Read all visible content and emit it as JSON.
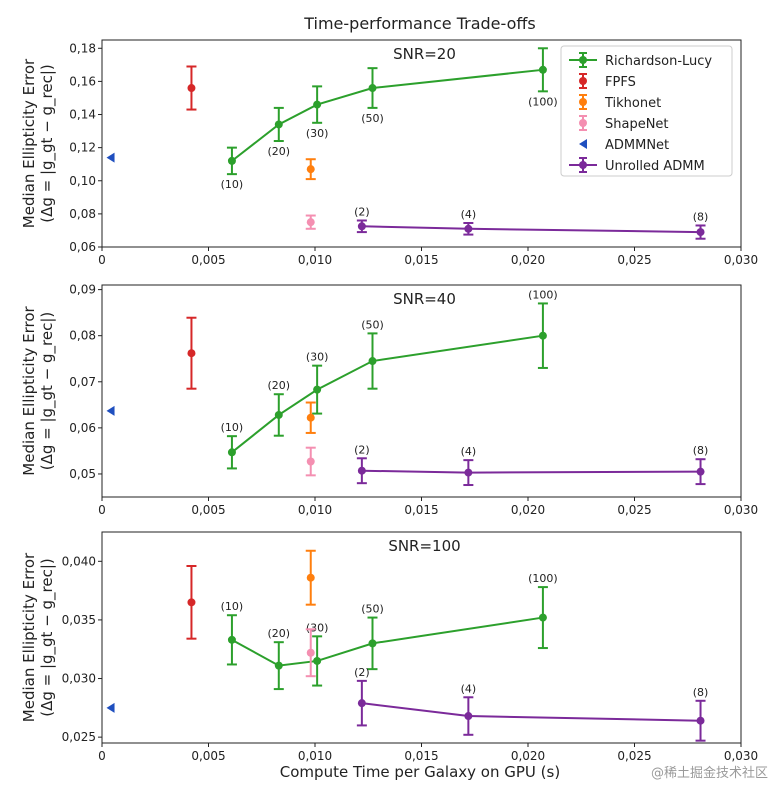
{
  "figure": {
    "title": "Time-performance Trade-offs",
    "xlabel": "Compute Time per Galaxy on GPU (s)",
    "ylabel_line1": "Median Ellipticity Error",
    "ylabel_line2": "(Δg = |g_gt − g_rec|)",
    "watermark": "@稀土掘金技术社区"
  },
  "colors": {
    "richardson_lucy": "#2ca02c",
    "fpfs": "#d62728",
    "tikhonet": "#ff7f0e",
    "shapenet": "#f48fb1",
    "admmnet": "#1f4fbf",
    "unrolled_admm": "#7b2a9a"
  },
  "chart_data": [
    {
      "type": "scatter",
      "panel_label": "SNR=20",
      "xlim": [
        0,
        0.03
      ],
      "ylim": [
        0.06,
        0.185
      ],
      "xticks": [
        0,
        0.005,
        0.01,
        0.015,
        0.02,
        0.025,
        0.03
      ],
      "xtick_labels": [
        "0",
        "0,005",
        "0,010",
        "0,015",
        "0,020",
        "0,025",
        "0,030"
      ],
      "yticks": [
        0.06,
        0.08,
        0.1,
        0.12,
        0.14,
        0.16,
        0.18
      ],
      "ytick_labels": [
        "0,06",
        "0,08",
        "0,10",
        "0,12",
        "0,14",
        "0,16",
        "0,18"
      ],
      "legend": "top-right",
      "legend_entries": [
        "Richardson-Lucy",
        "FPFS",
        "Tikhonet",
        "ShapeNet",
        "ADMMNet",
        "Unrolled ADMM"
      ],
      "series": [
        {
          "key": "richardson_lucy",
          "line": true,
          "points": [
            {
              "x": 0.0061,
              "y": 0.112,
              "err": 0.008,
              "label": "(10)",
              "label_pos": "below"
            },
            {
              "x": 0.0083,
              "y": 0.134,
              "err": 0.01,
              "label": "(20)",
              "label_pos": "below"
            },
            {
              "x": 0.0101,
              "y": 0.146,
              "err": 0.011,
              "label": "(30)",
              "label_pos": "below"
            },
            {
              "x": 0.0127,
              "y": 0.156,
              "err": 0.012,
              "label": "(50)",
              "label_pos": "below"
            },
            {
              "x": 0.0207,
              "y": 0.167,
              "err": 0.013,
              "label": "(100)",
              "label_pos": "below"
            }
          ]
        },
        {
          "key": "fpfs",
          "line": false,
          "points": [
            {
              "x": 0.0042,
              "y": 0.156,
              "err": 0.013
            }
          ]
        },
        {
          "key": "tikhonet",
          "line": false,
          "points": [
            {
              "x": 0.0098,
              "y": 0.107,
              "err": 0.006
            }
          ]
        },
        {
          "key": "shapenet",
          "line": false,
          "points": [
            {
              "x": 0.0098,
              "y": 0.075,
              "err": 0.004
            }
          ]
        },
        {
          "key": "admmnet",
          "line": false,
          "marker": "triangle",
          "points": [
            {
              "x": 0.0004,
              "y": 0.114
            }
          ]
        },
        {
          "key": "unrolled_admm",
          "line": true,
          "points": [
            {
              "x": 0.0122,
              "y": 0.0725,
              "err": 0.0035,
              "label": "(2)",
              "label_pos": "above"
            },
            {
              "x": 0.0172,
              "y": 0.071,
              "err": 0.0035,
              "label": "(4)",
              "label_pos": "above"
            },
            {
              "x": 0.0281,
              "y": 0.069,
              "err": 0.004,
              "label": "(8)",
              "label_pos": "above"
            }
          ]
        }
      ]
    },
    {
      "type": "scatter",
      "panel_label": "SNR=40",
      "xlim": [
        0,
        0.03
      ],
      "ylim": [
        0.045,
        0.091
      ],
      "xticks": [
        0,
        0.005,
        0.01,
        0.015,
        0.02,
        0.025,
        0.03
      ],
      "xtick_labels": [
        "0",
        "0,005",
        "0,010",
        "0,015",
        "0,020",
        "0,025",
        "0,030"
      ],
      "yticks": [
        0.05,
        0.06,
        0.07,
        0.08,
        0.09
      ],
      "ytick_labels": [
        "0,05",
        "0,06",
        "0,07",
        "0,08",
        "0,09"
      ],
      "series": [
        {
          "key": "richardson_lucy",
          "line": true,
          "points": [
            {
              "x": 0.0061,
              "y": 0.0547,
              "err": 0.0035,
              "label": "(10)",
              "label_pos": "above"
            },
            {
              "x": 0.0083,
              "y": 0.0628,
              "err": 0.0045,
              "label": "(20)",
              "label_pos": "above"
            },
            {
              "x": 0.0101,
              "y": 0.0683,
              "err": 0.0052,
              "label": "(30)",
              "label_pos": "above"
            },
            {
              "x": 0.0127,
              "y": 0.0745,
              "err": 0.006,
              "label": "(50)",
              "label_pos": "above"
            },
            {
              "x": 0.0207,
              "y": 0.08,
              "err": 0.007,
              "label": "(100)",
              "label_pos": "above"
            }
          ]
        },
        {
          "key": "fpfs",
          "line": false,
          "points": [
            {
              "x": 0.0042,
              "y": 0.0762,
              "err": 0.0077
            }
          ]
        },
        {
          "key": "tikhonet",
          "line": false,
          "points": [
            {
              "x": 0.0098,
              "y": 0.0622,
              "err": 0.0033
            }
          ]
        },
        {
          "key": "shapenet",
          "line": false,
          "points": [
            {
              "x": 0.0098,
              "y": 0.0527,
              "err": 0.003
            }
          ]
        },
        {
          "key": "admmnet",
          "line": false,
          "marker": "triangle",
          "points": [
            {
              "x": 0.0004,
              "y": 0.0637
            }
          ]
        },
        {
          "key": "unrolled_admm",
          "line": true,
          "points": [
            {
              "x": 0.0122,
              "y": 0.0507,
              "err": 0.0027,
              "label": "(2)",
              "label_pos": "above"
            },
            {
              "x": 0.0172,
              "y": 0.0503,
              "err": 0.0027,
              "label": "(4)",
              "label_pos": "above"
            },
            {
              "x": 0.0281,
              "y": 0.0505,
              "err": 0.0027,
              "label": "(8)",
              "label_pos": "above"
            }
          ]
        }
      ]
    },
    {
      "type": "scatter",
      "panel_label": "SNR=100",
      "xlim": [
        0,
        0.03
      ],
      "ylim": [
        0.0245,
        0.0425
      ],
      "xticks": [
        0,
        0.005,
        0.01,
        0.015,
        0.02,
        0.025,
        0.03
      ],
      "xtick_labels": [
        "0",
        "0,005",
        "0,010",
        "0,015",
        "0,020",
        "0,025",
        "0,030"
      ],
      "yticks": [
        0.025,
        0.03,
        0.035,
        0.04
      ],
      "ytick_labels": [
        "0,025",
        "0,030",
        "0,035",
        "0,040"
      ],
      "series": [
        {
          "key": "richardson_lucy",
          "line": true,
          "points": [
            {
              "x": 0.0061,
              "y": 0.0333,
              "err": 0.0021,
              "label": "(10)",
              "label_pos": "above"
            },
            {
              "x": 0.0083,
              "y": 0.0311,
              "err": 0.002,
              "label": "(20)",
              "label_pos": "above"
            },
            {
              "x": 0.0101,
              "y": 0.0315,
              "err": 0.0021,
              "label": "(30)",
              "label_pos": "above"
            },
            {
              "x": 0.0127,
              "y": 0.033,
              "err": 0.0022,
              "label": "(50)",
              "label_pos": "above"
            },
            {
              "x": 0.0207,
              "y": 0.0352,
              "err": 0.0026,
              "label": "(100)",
              "label_pos": "above"
            }
          ]
        },
        {
          "key": "fpfs",
          "line": false,
          "points": [
            {
              "x": 0.0042,
              "y": 0.0365,
              "err": 0.0031
            }
          ]
        },
        {
          "key": "tikhonet",
          "line": false,
          "points": [
            {
              "x": 0.0098,
              "y": 0.0386,
              "err": 0.0023
            }
          ]
        },
        {
          "key": "shapenet",
          "line": false,
          "points": [
            {
              "x": 0.0098,
              "y": 0.0322,
              "err": 0.002
            }
          ]
        },
        {
          "key": "admmnet",
          "line": false,
          "marker": "triangle",
          "points": [
            {
              "x": 0.0004,
              "y": 0.0275
            }
          ]
        },
        {
          "key": "unrolled_admm",
          "line": true,
          "points": [
            {
              "x": 0.0122,
              "y": 0.0279,
              "err": 0.0019,
              "label": "(2)",
              "label_pos": "above"
            },
            {
              "x": 0.0172,
              "y": 0.0268,
              "err": 0.0016,
              "label": "(4)",
              "label_pos": "above"
            },
            {
              "x": 0.0281,
              "y": 0.0264,
              "err": 0.0017,
              "label": "(8)",
              "label_pos": "above"
            }
          ]
        }
      ]
    }
  ]
}
